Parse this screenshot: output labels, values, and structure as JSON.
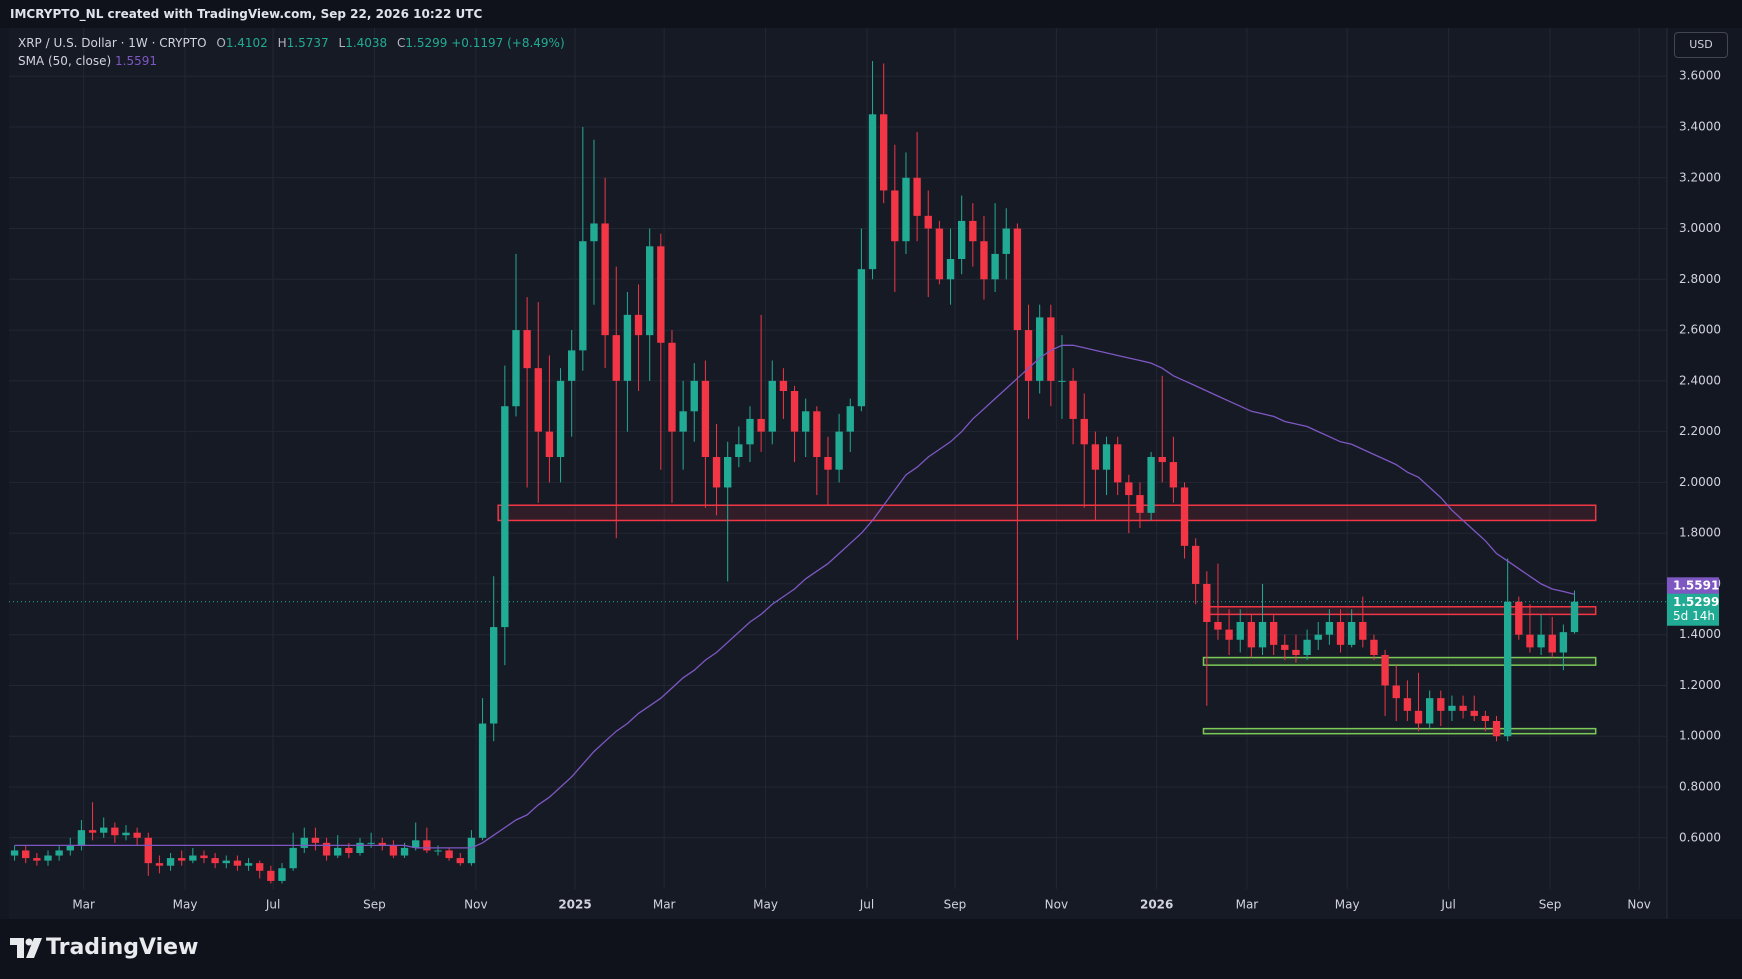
{
  "header": "IMCRYPTO_NL created with TradingView.com, Sep 22, 2026 10:22 UTC",
  "brand": "TradingView",
  "currency_button": "USD",
  "chart_data": {
    "type": "candlestick",
    "symbol": "XRP / U.S. Dollar · 1W · CRYPTO",
    "ohlc_letters": [
      "O",
      "H",
      "L",
      "C"
    ],
    "change_label": "+0.1197 (+8.49%)",
    "indicator_name": "SMA (50, close)",
    "countdown": "5d 14h",
    "up_color": "#22ab94",
    "down_color": "#f23645",
    "sma_color": "#7e57c2",
    "xlim": [
      -0.5,
      148.3
    ],
    "ylim": [
      0.28,
      3.79
    ],
    "grid": true,
    "xticks": [
      {
        "value": 6.2,
        "label": "Mar"
      },
      {
        "value": 15.3,
        "label": "May"
      },
      {
        "value": 23.2,
        "label": "Jul"
      },
      {
        "value": 32.3,
        "label": "Sep"
      },
      {
        "value": 41.4,
        "label": "Nov"
      },
      {
        "value": 50.3,
        "label": "2025"
      },
      {
        "value": 58.3,
        "label": "Mar"
      },
      {
        "value": 67.4,
        "label": "May"
      },
      {
        "value": 76.5,
        "label": "Jul"
      },
      {
        "value": 84.4,
        "label": "Sep"
      },
      {
        "value": 93.5,
        "label": "Nov"
      },
      {
        "value": 102.5,
        "label": "2026"
      },
      {
        "value": 110.6,
        "label": "Mar"
      },
      {
        "value": 119.6,
        "label": "May"
      },
      {
        "value": 128.7,
        "label": "Jul"
      },
      {
        "value": 137.8,
        "label": "Sep"
      },
      {
        "value": 145.8,
        "label": "Nov"
      }
    ],
    "yticks": [
      {
        "value": 0.6,
        "label": "0.6000"
      },
      {
        "value": 0.8,
        "label": "0.8000"
      },
      {
        "value": 1,
        "label": "1.0000"
      },
      {
        "value": 1.2,
        "label": "1.2000"
      },
      {
        "value": 1.4,
        "label": "1.4000"
      },
      {
        "value": 1.6,
        "label": "1.6000"
      },
      {
        "value": 1.8,
        "label": "1.8000"
      },
      {
        "value": 2,
        "label": "2.0000"
      },
      {
        "value": 2.2,
        "label": "2.2000"
      },
      {
        "value": 2.4,
        "label": "2.4000"
      },
      {
        "value": 2.6,
        "label": "2.6000"
      },
      {
        "value": 2.8,
        "label": "2.8000"
      },
      {
        "value": 3,
        "label": "3.0000"
      },
      {
        "value": 3.2,
        "label": "3.2000"
      },
      {
        "value": 3.4,
        "label": "3.4000"
      },
      {
        "value": 3.6,
        "label": "3.6000"
      }
    ],
    "open": [
      0.53,
      0.55,
      0.52,
      0.51,
      0.53,
      0.55,
      0.57,
      0.63,
      0.62,
      0.64,
      0.61,
      0.62,
      0.6,
      0.5,
      0.49,
      0.52,
      0.51,
      0.53,
      0.52,
      0.5,
      0.51,
      0.49,
      0.5,
      0.47,
      0.43,
      0.48,
      0.56,
      0.6,
      0.58,
      0.53,
      0.56,
      0.54,
      0.58,
      0.58,
      0.57,
      0.53,
      0.56,
      0.59,
      0.55,
      0.55,
      0.52,
      0.5,
      0.6,
      1.05,
      1.43,
      2.3,
      2.6,
      2.45,
      2.2,
      2.1,
      2.4,
      2.52,
      2.95,
      3.02,
      2.58,
      2.4,
      2.66,
      2.58,
      2.93,
      2.55,
      2.2,
      2.28,
      2.4,
      2.1,
      1.98,
      2.1,
      2.15,
      2.25,
      2.2,
      2.4,
      2.36,
      2.2,
      2.28,
      2.1,
      2.05,
      2.2,
      2.3,
      2.84,
      3.45,
      3.15,
      2.95,
      3.2,
      3.05,
      3.0,
      2.8,
      2.88,
      3.03,
      2.95,
      2.8,
      2.9,
      3.0,
      2.6,
      2.4,
      2.65,
      2.4,
      2.4,
      2.25,
      2.15,
      2.05,
      2.15,
      2.0,
      1.95,
      1.88,
      2.1,
      2.08,
      1.98,
      1.75,
      1.6,
      1.45,
      1.42,
      1.38,
      1.45,
      1.35,
      1.45,
      1.36,
      1.34,
      1.32,
      1.38,
      1.4,
      1.45,
      1.36,
      1.45,
      1.38,
      1.32,
      1.2,
      1.15,
      1.1,
      1.05,
      1.15,
      1.1,
      1.12,
      1.1,
      1.08,
      1.06,
      1.0,
      1.53,
      1.4,
      1.35,
      1.4,
      1.33,
      1.4102
    ],
    "high": [
      0.57,
      0.57,
      0.54,
      0.55,
      0.57,
      0.6,
      0.67,
      0.74,
      0.68,
      0.66,
      0.65,
      0.64,
      0.62,
      0.53,
      0.54,
      0.55,
      0.56,
      0.55,
      0.54,
      0.53,
      0.53,
      0.52,
      0.51,
      0.49,
      0.5,
      0.62,
      0.64,
      0.64,
      0.6,
      0.61,
      0.58,
      0.6,
      0.62,
      0.6,
      0.59,
      0.58,
      0.66,
      0.64,
      0.57,
      0.56,
      0.54,
      0.63,
      1.15,
      1.63,
      2.46,
      2.9,
      2.73,
      2.71,
      2.5,
      2.45,
      2.6,
      3.4,
      3.35,
      3.2,
      2.85,
      2.75,
      2.78,
      3.0,
      2.98,
      2.6,
      2.4,
      2.47,
      2.48,
      2.23,
      2.16,
      2.22,
      2.3,
      2.66,
      2.48,
      2.45,
      2.38,
      2.33,
      2.3,
      2.18,
      2.27,
      2.33,
      3.0,
      3.66,
      3.65,
      3.33,
      3.3,
      3.38,
      3.15,
      3.03,
      3.0,
      3.13,
      3.1,
      3.05,
      3.1,
      3.08,
      3.02,
      2.7,
      2.7,
      2.7,
      2.58,
      2.45,
      2.35,
      2.2,
      2.18,
      2.18,
      2.03,
      2.0,
      2.12,
      2.42,
      2.18,
      2.0,
      1.78,
      1.65,
      1.68,
      1.5,
      1.5,
      1.48,
      1.6,
      1.48,
      1.4,
      1.4,
      1.42,
      1.45,
      1.5,
      1.5,
      1.5,
      1.55,
      1.4,
      1.34,
      1.28,
      1.22,
      1.25,
      1.18,
      1.18,
      1.16,
      1.16,
      1.16,
      1.1,
      1.08,
      1.7,
      1.55,
      1.52,
      1.48,
      1.47,
      1.44,
      1.5737
    ],
    "low": [
      0.51,
      0.5,
      0.49,
      0.49,
      0.51,
      0.53,
      0.55,
      0.59,
      0.6,
      0.58,
      0.59,
      0.57,
      0.45,
      0.46,
      0.47,
      0.49,
      0.5,
      0.5,
      0.48,
      0.48,
      0.47,
      0.47,
      0.44,
      0.42,
      0.42,
      0.47,
      0.54,
      0.55,
      0.51,
      0.52,
      0.52,
      0.53,
      0.56,
      0.55,
      0.52,
      0.52,
      0.55,
      0.54,
      0.53,
      0.51,
      0.49,
      0.49,
      0.59,
      0.98,
      1.28,
      2.26,
      1.98,
      1.92,
      2.0,
      2.0,
      2.18,
      2.44,
      2.7,
      2.45,
      1.78,
      2.2,
      2.36,
      2.4,
      2.05,
      1.92,
      2.05,
      2.16,
      1.9,
      1.87,
      1.61,
      2.06,
      2.08,
      2.12,
      2.15,
      2.25,
      2.08,
      2.1,
      1.95,
      1.91,
      2.0,
      2.12,
      2.28,
      2.8,
      3.1,
      2.75,
      2.9,
      2.95,
      2.73,
      2.78,
      2.7,
      2.82,
      2.85,
      2.72,
      2.75,
      2.8,
      1.38,
      2.25,
      2.35,
      2.3,
      2.25,
      2.15,
      1.9,
      1.85,
      1.95,
      1.95,
      1.8,
      1.82,
      1.85,
      2.0,
      1.92,
      1.7,
      1.52,
      1.12,
      1.38,
      1.32,
      1.33,
      1.31,
      1.32,
      1.32,
      1.3,
      1.29,
      1.3,
      1.34,
      1.36,
      1.33,
      1.35,
      1.35,
      1.3,
      1.08,
      1.06,
      1.06,
      1.02,
      1.03,
      1.04,
      1.06,
      1.07,
      1.06,
      1.02,
      0.98,
      0.98,
      1.38,
      1.33,
      1.32,
      1.31,
      1.26,
      1.4038
    ],
    "close": [
      0.55,
      0.52,
      0.51,
      0.53,
      0.55,
      0.57,
      0.63,
      0.62,
      0.64,
      0.61,
      0.62,
      0.6,
      0.5,
      0.49,
      0.52,
      0.51,
      0.53,
      0.52,
      0.5,
      0.51,
      0.49,
      0.5,
      0.47,
      0.43,
      0.48,
      0.56,
      0.6,
      0.58,
      0.53,
      0.56,
      0.54,
      0.58,
      0.58,
      0.57,
      0.53,
      0.56,
      0.59,
      0.55,
      0.55,
      0.52,
      0.5,
      0.6,
      1.05,
      1.43,
      2.3,
      2.6,
      2.45,
      2.2,
      2.1,
      2.4,
      2.52,
      2.95,
      3.02,
      2.58,
      2.4,
      2.66,
      2.58,
      2.93,
      2.55,
      2.2,
      2.28,
      2.4,
      2.1,
      1.98,
      2.1,
      2.15,
      2.25,
      2.2,
      2.4,
      2.36,
      2.2,
      2.28,
      2.1,
      2.05,
      2.2,
      2.3,
      2.84,
      3.45,
      3.15,
      2.95,
      3.2,
      3.05,
      3.0,
      2.8,
      2.88,
      3.03,
      2.95,
      2.8,
      2.9,
      3.0,
      2.6,
      2.4,
      2.65,
      2.4,
      2.4,
      2.25,
      2.15,
      2.05,
      2.15,
      2.0,
      1.95,
      1.88,
      2.1,
      2.08,
      1.98,
      1.75,
      1.6,
      1.45,
      1.42,
      1.38,
      1.45,
      1.35,
      1.45,
      1.36,
      1.34,
      1.32,
      1.38,
      1.4,
      1.45,
      1.36,
      1.45,
      1.38,
      1.32,
      1.2,
      1.15,
      1.1,
      1.05,
      1.15,
      1.1,
      1.12,
      1.1,
      1.08,
      1.06,
      1.0,
      1.53,
      1.4,
      1.35,
      1.4,
      1.33,
      1.41,
      1.5299
    ],
    "sma": [
      0.57,
      0.57,
      0.57,
      0.57,
      0.57,
      0.57,
      0.57,
      0.57,
      0.57,
      0.57,
      0.57,
      0.57,
      0.57,
      0.57,
      0.57,
      0.57,
      0.57,
      0.57,
      0.57,
      0.57,
      0.57,
      0.57,
      0.57,
      0.57,
      0.57,
      0.57,
      0.57,
      0.57,
      0.57,
      0.57,
      0.57,
      0.57,
      0.57,
      0.57,
      0.57,
      0.57,
      0.56,
      0.56,
      0.56,
      0.56,
      0.56,
      0.56,
      0.58,
      0.61,
      0.64,
      0.67,
      0.69,
      0.73,
      0.76,
      0.8,
      0.84,
      0.89,
      0.94,
      0.98,
      1.02,
      1.05,
      1.09,
      1.12,
      1.15,
      1.19,
      1.23,
      1.26,
      1.3,
      1.33,
      1.37,
      1.41,
      1.45,
      1.48,
      1.52,
      1.55,
      1.58,
      1.62,
      1.65,
      1.68,
      1.72,
      1.76,
      1.8,
      1.85,
      1.91,
      1.97,
      2.03,
      2.06,
      2.1,
      2.13,
      2.16,
      2.2,
      2.25,
      2.29,
      2.33,
      2.37,
      2.41,
      2.45,
      2.49,
      2.52,
      2.54,
      2.54,
      2.53,
      2.52,
      2.51,
      2.5,
      2.49,
      2.48,
      2.47,
      2.45,
      2.42,
      2.4,
      2.38,
      2.36,
      2.34,
      2.32,
      2.3,
      2.28,
      2.27,
      2.26,
      2.24,
      2.23,
      2.22,
      2.2,
      2.18,
      2.16,
      2.15,
      2.13,
      2.11,
      2.09,
      2.07,
      2.04,
      2.02,
      1.98,
      1.94,
      1.89,
      1.85,
      1.81,
      1.77,
      1.72,
      1.69,
      1.66,
      1.63,
      1.6,
      1.58,
      1.57,
      1.5591
    ],
    "zones": [
      {
        "low": 1.85,
        "high": 1.91,
        "start": 43.4,
        "end": 141.9,
        "color": "#f23645"
      },
      {
        "low": 1.48,
        "high": 1.51,
        "start": 107.1,
        "end": 141.9,
        "color": "#f23645"
      },
      {
        "low": 1.28,
        "high": 1.31,
        "start": 106.7,
        "end": 141.9,
        "color": "#7cc95a"
      },
      {
        "low": 1.01,
        "high": 1.03,
        "start": 106.7,
        "end": 141.9,
        "color": "#7cc95a"
      }
    ]
  }
}
